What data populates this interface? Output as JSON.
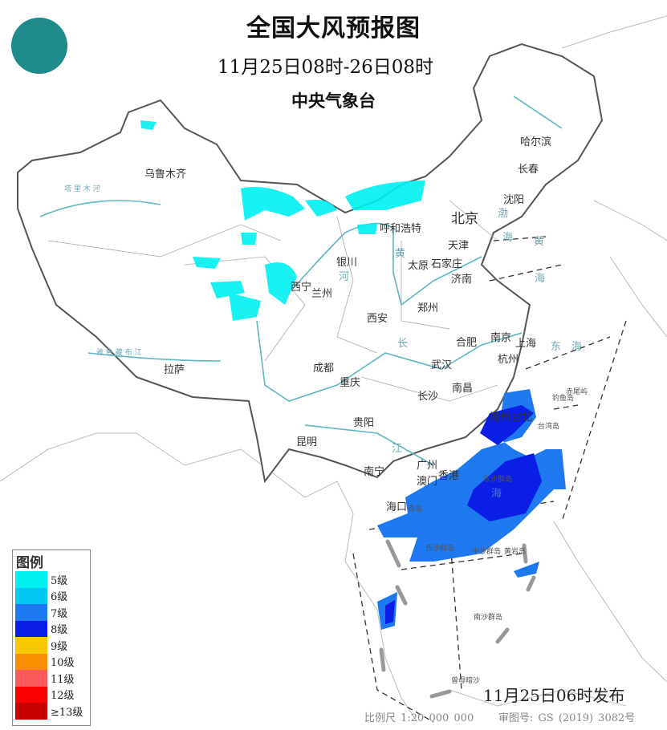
{
  "header": {
    "title": "全国大风预报图",
    "period": "11月25日08时-26日08时",
    "issuer": "中央气象台",
    "logo_icon": "cma-logo-icon"
  },
  "cities": [
    {
      "name": "乌鲁木齐"
    },
    {
      "name": "哈尔滨"
    },
    {
      "name": "长春"
    },
    {
      "name": "沈阳"
    },
    {
      "name": "北京"
    },
    {
      "name": "呼和浩特"
    },
    {
      "name": "天津"
    },
    {
      "name": "银川"
    },
    {
      "name": "太原"
    },
    {
      "name": "石家庄"
    },
    {
      "name": "济南"
    },
    {
      "name": "西宁"
    },
    {
      "name": "兰州"
    },
    {
      "name": "郑州"
    },
    {
      "name": "西安"
    },
    {
      "name": "南京"
    },
    {
      "name": "合肥"
    },
    {
      "name": "上海"
    },
    {
      "name": "杭州"
    },
    {
      "name": "成都"
    },
    {
      "name": "武汉"
    },
    {
      "name": "拉萨"
    },
    {
      "name": "重庆"
    },
    {
      "name": "长沙"
    },
    {
      "name": "南昌"
    },
    {
      "name": "福州"
    },
    {
      "name": "台北"
    },
    {
      "name": "贵阳"
    },
    {
      "name": "昆明"
    },
    {
      "name": "南宁"
    },
    {
      "name": "广州"
    },
    {
      "name": "澳门"
    },
    {
      "name": "香港"
    },
    {
      "name": "海口"
    }
  ],
  "water_labels": {
    "bohai": "渤",
    "bohai2": "海",
    "huanghai": "黄",
    "huanghai2": "海",
    "donghai": "东",
    "donghai2": "海",
    "nanhai": "海",
    "huang_river": "黄",
    "he": "河",
    "chang": "长",
    "jiang": "江",
    "tarim": "塔 里 木 河",
    "yarlung": "雅 鲁 藏 布 江"
  },
  "islands": {
    "taiwan": "台湾岛",
    "hainan": "南岛",
    "dongsha": "东沙群岛",
    "xisha": "西沙群岛",
    "zhongsha": "中沙群岛",
    "huangyan": "黄岩岛",
    "nansha": "南沙群岛",
    "zengmu": "曾母暗沙",
    "chiwei": "赤尾屿",
    "diaoyu": "钓鱼岛"
  },
  "legend": {
    "title": "图例",
    "items": [
      {
        "label": "5级",
        "color": "#00f0f0"
      },
      {
        "label": "6级",
        "color": "#00c8f0"
      },
      {
        "label": "7级",
        "color": "#1e78f0"
      },
      {
        "label": "8级",
        "color": "#0a1ee6"
      },
      {
        "label": "9级",
        "color": "#fac800"
      },
      {
        "label": "10级",
        "color": "#fa8c00"
      },
      {
        "label": "11级",
        "color": "#fa5a5a"
      },
      {
        "label": "12级",
        "color": "#fa0000"
      },
      {
        "label": "≥13级",
        "color": "#c80000"
      }
    ]
  },
  "footer": {
    "issued": "11月25日06时发布",
    "scale": "比例尺 1:20 000 000",
    "map_no": "审图号: GS (2019) 3082号"
  }
}
